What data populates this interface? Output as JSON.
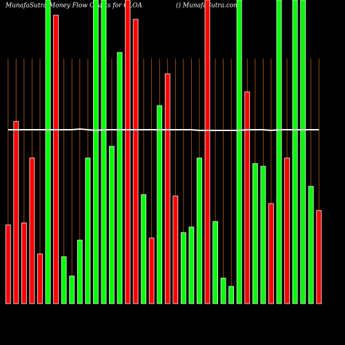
{
  "chart_data": {
    "type": "bar",
    "title": "MunafaSutra Money Flow Charts for CLOA",
    "source": "() MunafaSutra.com",
    "categories": [
      null,
      null,
      null,
      null,
      null,
      null,
      null,
      null,
      null,
      null,
      null,
      null,
      null,
      null,
      null,
      null,
      null,
      null,
      null,
      null,
      null,
      null,
      null,
      null,
      null,
      null,
      null,
      null,
      null,
      null,
      null,
      null,
      null,
      null,
      null,
      null,
      null,
      null,
      null,
      null
    ],
    "series": [
      {
        "color": [
          "#ff0000",
          "#ff0000",
          "#ff0000",
          "#ff0000",
          "#ff0000",
          "#00ff00",
          "#ff0000",
          "#00ff00",
          "#00ff00",
          "#00ff00",
          "#00ff00",
          "#00ff00",
          "#00ff00",
          "#00ff00",
          "#00ff00",
          "#ff0000",
          "#ff0000",
          "#00ff00",
          "#ff0000",
          "#00ff00",
          "#ff0000",
          "#ff0000",
          "#00ff00",
          "#00ff00",
          "#00ff00",
          "#ff0000",
          "#00ff00",
          "#00ff00",
          "#00ff00",
          "#00ff00",
          "#ff0000",
          "#00ff00",
          "#00ff00",
          "#ff0000",
          "#00ff00",
          "#ff0000",
          "#00ff00",
          "#00ff00",
          "#00ff00",
          "#ff0000"
        ],
        "values": [
          114,
          264,
          117,
          211,
          72,
          440,
          418,
          68,
          40,
          92,
          211,
          440,
          440,
          228,
          364,
          440,
          412,
          158,
          95,
          287,
          333,
          156,
          103,
          111,
          211,
          440,
          119,
          37,
          25,
          440,
          307,
          203,
          199,
          145,
          440,
          211,
          440,
          440,
          170,
          135
        ]
      },
      {
        "type": "line",
        "color": "#ffffff",
        "values": [
          252,
          252,
          252,
          252,
          252,
          252,
          252,
          252,
          252,
          253,
          252,
          251,
          252,
          252,
          252,
          252,
          252,
          252,
          252,
          252,
          252,
          252,
          252,
          252,
          251,
          251,
          251,
          251,
          251,
          251,
          252,
          252,
          252,
          251,
          252,
          252,
          252,
          252,
          252,
          252
        ]
      }
    ],
    "ylim": [
      0,
      440
    ]
  }
}
